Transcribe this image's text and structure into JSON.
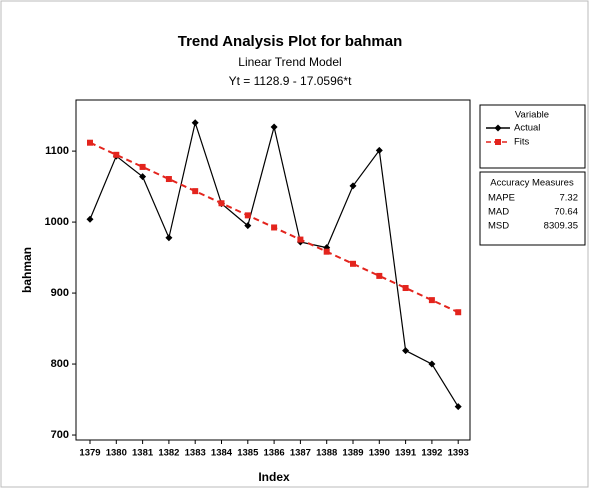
{
  "chart_data": {
    "type": "line",
    "title": "Trend Analysis Plot for bahman",
    "subtitle": "Linear Trend Model",
    "equation": "Yt = 1128.9 - 17.0596*t",
    "x_label": "Index",
    "y_label": "bahman",
    "categories": [
      "1379",
      "1380",
      "1381",
      "1382",
      "1383",
      "1384",
      "1385",
      "1386",
      "1387",
      "1388",
      "1389",
      "1390",
      "1391",
      "1392",
      "1393"
    ],
    "series": [
      {
        "name": "Actual",
        "color": "#000000",
        "line_style": "solid",
        "marker": "diamond",
        "values": [
          1004,
          1093,
          1064,
          978,
          1140,
          1026,
          995,
          1134,
          972,
          964,
          1051,
          1101,
          819,
          800,
          740
        ]
      },
      {
        "name": "Fits",
        "color": "#e3241d",
        "line_style": "dashed",
        "marker": "square",
        "values": [
          1111.84,
          1094.78,
          1077.72,
          1060.66,
          1043.6,
          1026.54,
          1009.48,
          992.42,
          975.36,
          958.3,
          941.24,
          924.18,
          907.12,
          890.06,
          873.01
        ]
      }
    ],
    "ylim": [
      693,
      1172
    ],
    "yticks": [
      700,
      800,
      900,
      1000,
      1100
    ],
    "legend_title": "Variable",
    "accuracy": {
      "title": "Accuracy Measures",
      "rows": [
        {
          "name": "MAPE",
          "value": 7.32
        },
        {
          "name": "MAD",
          "value": 70.64
        },
        {
          "name": "MSD",
          "value": 8309.35
        }
      ]
    }
  }
}
